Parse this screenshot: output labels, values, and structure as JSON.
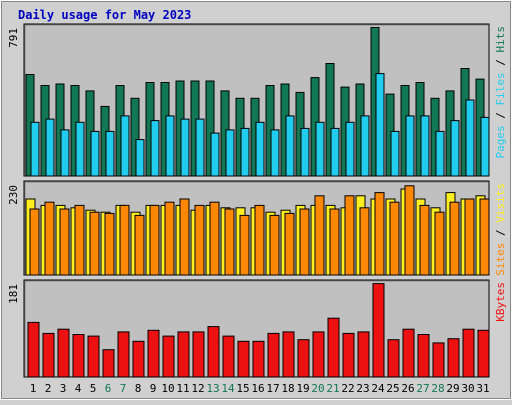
{
  "title": "Daily usage for May 2023",
  "colors": {
    "background": "#d0d0d0",
    "panel": "#c0c0c0",
    "title": "#0000c0",
    "hits": "#117755",
    "files": "#22ccee",
    "sites": "#ff8800",
    "visits": "#ffee22",
    "kbytes": "#ee1111",
    "weekend_label": "#117755",
    "day_label": "#000000"
  },
  "chart_data": [
    {
      "type": "bar",
      "panel": "pages-files-hits",
      "ymax_label": "791",
      "ylim": [
        0,
        791
      ],
      "legend": [
        "Pages",
        "Files",
        "Hits"
      ],
      "categories": [
        "1",
        "2",
        "3",
        "4",
        "5",
        "6",
        "7",
        "8",
        "9",
        "10",
        "11",
        "12",
        "13",
        "14",
        "15",
        "16",
        "17",
        "18",
        "19",
        "20",
        "21",
        "22",
        "23",
        "24",
        "25",
        "26",
        "27",
        "28",
        "29",
        "30",
        "31"
      ],
      "series": [
        {
          "name": "Hits",
          "values": [
            535,
            477,
            485,
            477,
            449,
            367,
            477,
            410,
            493,
            493,
            501,
            501,
            501,
            449,
            410,
            410,
            477,
            485,
            441,
            519,
            593,
            469,
            485,
            783,
            432,
            477,
            493,
            410,
            449,
            567,
            511
          ]
        },
        {
          "name": "Files",
          "values": [
            283,
            300,
            243,
            283,
            235,
            235,
            317,
            192,
            292,
            317,
            300,
            300,
            226,
            243,
            251,
            283,
            243,
            317,
            251,
            283,
            251,
            283,
            317,
            540,
            235,
            317,
            317,
            235,
            292,
            401,
            309
          ]
        }
      ]
    },
    {
      "type": "bar",
      "panel": "sites-visits",
      "ymax_label": "230",
      "ylim": [
        0,
        230
      ],
      "legend": [
        "Sites",
        "Visits"
      ],
      "categories": [
        "1",
        "2",
        "3",
        "4",
        "5",
        "6",
        "7",
        "8",
        "9",
        "10",
        "11",
        "12",
        "13",
        "14",
        "15",
        "16",
        "17",
        "18",
        "19",
        "20",
        "21",
        "22",
        "23",
        "24",
        "25",
        "26",
        "27",
        "28",
        "29",
        "30",
        "31"
      ],
      "series": [
        {
          "name": "Visits",
          "values": [
            190,
            174,
            174,
            168,
            162,
            157,
            174,
            157,
            174,
            174,
            174,
            162,
            174,
            168,
            168,
            168,
            157,
            162,
            174,
            174,
            174,
            168,
            198,
            190,
            190,
            215,
            190,
            168,
            206,
            190,
            198
          ]
        },
        {
          "name": "Sites",
          "values": [
            165,
            182,
            165,
            174,
            157,
            154,
            174,
            149,
            174,
            182,
            190,
            174,
            182,
            165,
            149,
            174,
            149,
            154,
            165,
            198,
            165,
            198,
            168,
            206,
            182,
            223,
            174,
            157,
            182,
            190,
            190
          ]
        }
      ]
    },
    {
      "type": "bar",
      "panel": "kbytes",
      "ymax_label": "181",
      "ylim": [
        0,
        181
      ],
      "legend": [
        "KBytes"
      ],
      "categories": [
        "1",
        "2",
        "3",
        "4",
        "5",
        "6",
        "7",
        "8",
        "9",
        "10",
        "11",
        "12",
        "13",
        "14",
        "15",
        "16",
        "17",
        "18",
        "19",
        "20",
        "21",
        "22",
        "23",
        "24",
        "25",
        "26",
        "27",
        "28",
        "29",
        "30",
        "31"
      ],
      "series": [
        {
          "name": "KBytes",
          "values": [
            104,
            83,
            91,
            81,
            78,
            52,
            86,
            68,
            89,
            78,
            86,
            86,
            96,
            78,
            68,
            68,
            83,
            86,
            71,
            86,
            112,
            83,
            86,
            178,
            71,
            91,
            81,
            65,
            73,
            91,
            89
          ]
        }
      ]
    }
  ],
  "weekend_days": [
    "6",
    "7",
    "13",
    "14",
    "20",
    "21",
    "27",
    "28"
  ]
}
